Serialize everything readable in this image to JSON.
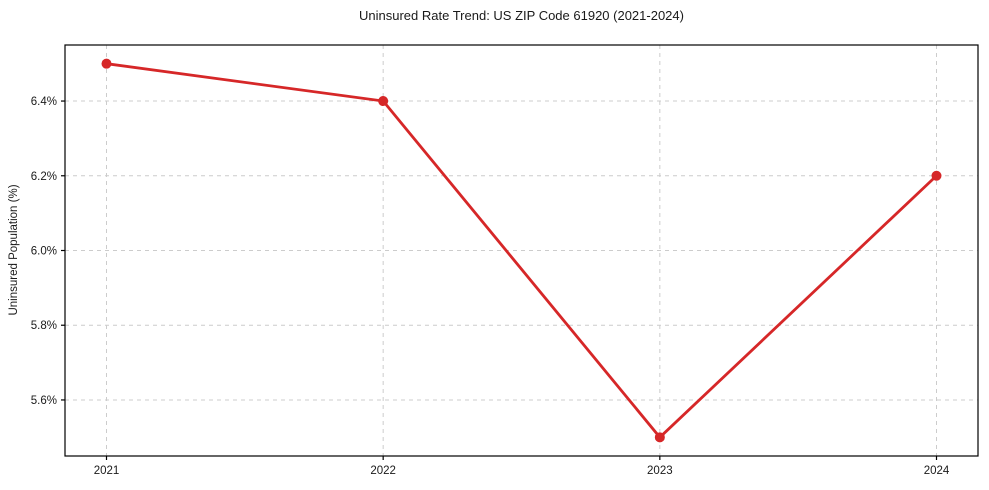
{
  "chart_data": {
    "type": "line",
    "title": "Uninsured Rate Trend: US ZIP Code 61920 (2021-2024)",
    "xlabel": "",
    "ylabel": "Uninsured Population (%)",
    "x": [
      2021,
      2022,
      2023,
      2024
    ],
    "values": [
      6.5,
      6.4,
      5.5,
      6.2
    ],
    "xtick_labels": [
      "2021",
      "2022",
      "2023",
      "2024"
    ],
    "ytick_values": [
      5.6,
      5.8,
      6.0,
      6.2,
      6.4
    ],
    "ytick_labels": [
      "5.6%",
      "5.8%",
      "6.0%",
      "6.2%",
      "6.4%"
    ],
    "xlim": [
      2020.85,
      2024.15
    ],
    "ylim": [
      5.45,
      6.55
    ],
    "grid": true,
    "grid_style": "dashed",
    "legend_position": "none",
    "line_color": "#d62728",
    "marker": "circle",
    "grid_color": "#cccccc",
    "spine_color": "#000000",
    "text_color": "#1a1a1a",
    "background_color": "#ffffff"
  }
}
